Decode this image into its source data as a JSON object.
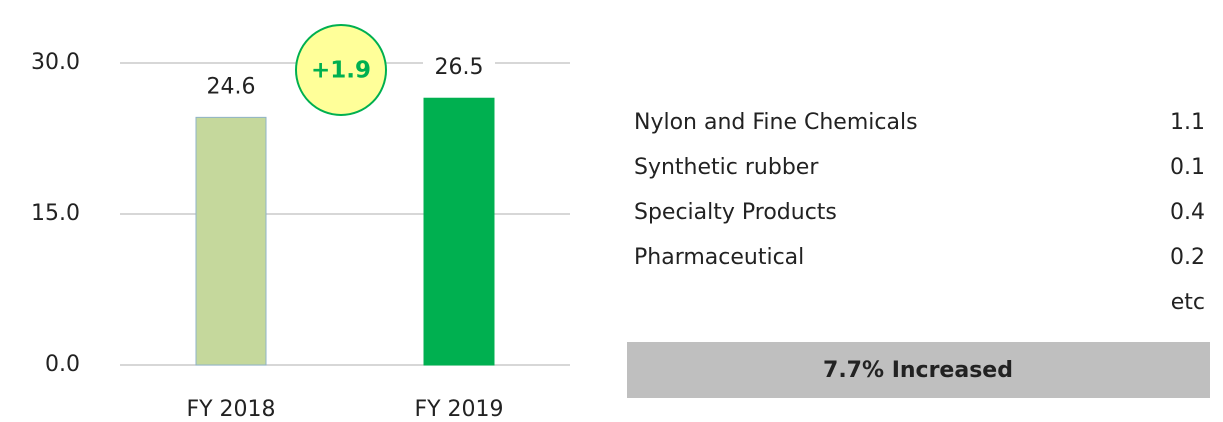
{
  "chart_data": {
    "type": "bar",
    "categories": [
      "FY 2018",
      "FY 2019"
    ],
    "values": [
      24.6,
      26.5
    ],
    "colors": [
      "#c5d89c",
      "#00b050"
    ],
    "ylim": [
      0,
      30
    ],
    "yticks": [
      {
        "value": 0,
        "label": "0.0"
      },
      {
        "value": 15,
        "label": "15.0"
      },
      {
        "value": 30,
        "label": "30.0"
      }
    ],
    "grid": true,
    "annotation": "+1.9"
  },
  "breakdown": {
    "rows": [
      [
        "Nylon and Fine Chemicals",
        1.1
      ],
      [
        "Synthetic rubber",
        0.1
      ],
      [
        "Specialty Products",
        0.4
      ],
      [
        "Pharmaceutical",
        0.2
      ]
    ],
    "note": "etc",
    "summary": "7.7% Increased"
  }
}
